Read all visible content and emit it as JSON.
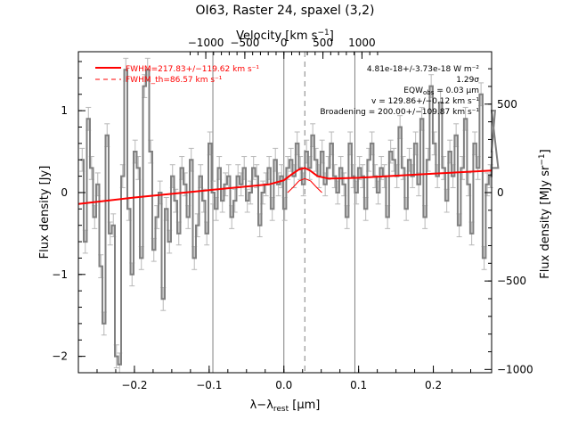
{
  "chart_data": {
    "type": "line",
    "title": "OI63, Raster 24, spaxel (3,2)",
    "xlabel": "λ−λrest [μm]",
    "xlabel_parts": {
      "lambda": "λ−λ",
      "sub": "rest",
      "unit": " [μm]"
    },
    "ylabel_left": "Flux density [Jy]",
    "ylabel_right": "Flux density [MJy sr⁻¹]",
    "ylabel_right_parts": {
      "text": "Flux density [MJy sr",
      "sup": "−1",
      "close": "]"
    },
    "xlabel_top": "Velocity [km s⁻¹]",
    "xlabel_top_parts": {
      "text": "Velocity [km s",
      "sup": "−1",
      "close": "]"
    },
    "xlim": [
      -0.275,
      0.278
    ],
    "ylim": [
      -2.2,
      1.72
    ],
    "xticks": [
      -0.2,
      -0.1,
      0.0,
      0.1,
      0.2
    ],
    "xtick_labels": [
      "−0.2",
      "−0.1",
      "0.0",
      "0.1",
      "0.2"
    ],
    "yticks": [
      -2,
      -1,
      0,
      1
    ],
    "ytick_labels": [
      "−2",
      "−1",
      "0",
      "1"
    ],
    "velocity_ticks": [
      -1000,
      -500,
      0,
      500,
      1000
    ],
    "velocity_tick_labels": [
      "−1000",
      "−500",
      "0",
      "500",
      "1000"
    ],
    "velocity_zero_x": 0.0,
    "microns_per_1000_kms": 0.1045,
    "right_ticks": [
      -1000,
      -500,
      0,
      500
    ],
    "right_tick_labels": [
      "−1000",
      "−500",
      "0",
      "500"
    ],
    "right_zero_y": 0.0,
    "jy_per_500_mjysr": 1.08,
    "vertical_lines": [
      -0.095,
      0.0,
      0.095
    ],
    "dashed_line_x": 0.028,
    "annotations": [
      "4.81e-18+/-3.73e-18 W m⁻²",
      "1.29σ",
      "EQW = 0.03 μm",
      "v = 129.86+/−0.12 km s⁻¹",
      "Broadening = 200.00+/−109.87 km s⁻¹"
    ],
    "eqw_parts": {
      "pre": "EQW",
      "sub": "obs",
      "post": " = 0.03 μm"
    },
    "legend": [
      "FWHM=217.83+/−119.62 km s⁻¹",
      "FWHM_th=86.57 km s⁻¹"
    ],
    "legend_placement": "top-left",
    "colors": {
      "data": "#808080",
      "fit": "#ff0000",
      "axes": "#000000"
    },
    "series": [
      {
        "type": "histogram_with_errorbars",
        "color": "#808080",
        "error_bar": 0.14,
        "x_step": 0.00417,
        "x_start": -0.272,
        "values": [
          0.4,
          -0.6,
          0.9,
          0.3,
          -0.3,
          0.1,
          -0.9,
          -1.6,
          0.7,
          -0.5,
          -0.4,
          -2.0,
          -2.1,
          0.2,
          1.5,
          -0.2,
          -1.0,
          0.5,
          0.3,
          -0.8,
          1.3,
          1.5,
          0.5,
          -0.7,
          -0.3,
          0.0,
          -1.3,
          -0.2,
          -0.6,
          0.2,
          -0.1,
          -0.5,
          0.3,
          0.1,
          -0.3,
          0.4,
          -0.8,
          -0.4,
          0.2,
          -0.1,
          -0.5,
          0.6,
          0.0,
          -0.2,
          0.3,
          -0.1,
          0.1,
          0.2,
          -0.3,
          -0.1,
          0.2,
          0.1,
          0.3,
          -0.1,
          0.0,
          0.3,
          0.2,
          -0.4,
          0.0,
          0.1,
          0.3,
          -0.2,
          0.4,
          0.1,
          0.2,
          -0.2,
          0.3,
          0.4,
          0.2,
          0.6,
          0.3,
          0.1,
          0.5,
          0.3,
          0.7,
          0.4,
          0.2,
          0.5,
          0.1,
          0.3,
          0.6,
          0.2,
          0.0,
          0.3,
          0.1,
          -0.3,
          0.6,
          0.2,
          0.0,
          0.3,
          0.2,
          -0.2,
          0.4,
          0.6,
          0.2,
          0.0,
          0.3,
          0.2,
          -0.3,
          0.5,
          0.4,
          0.2,
          0.8,
          0.3,
          -0.2,
          0.4,
          0.2,
          0.6,
          0.1,
          0.9,
          -0.3,
          0.4,
          1.3,
          0.6,
          0.2,
          1.1,
          0.3,
          -0.1,
          0.5,
          0.2,
          0.7,
          -0.4,
          0.3,
          0.9,
          0.1,
          -0.5,
          0.6,
          0.3,
          1.2,
          -0.8,
          0.1,
          0.2,
          0.5,
          1.0,
          0.3
        ]
      },
      {
        "name": "fit",
        "type": "line",
        "color": "#ff0000",
        "x": [
          -0.275,
          -0.2,
          -0.1,
          -0.02,
          0.0,
          0.01,
          0.02,
          0.028,
          0.035,
          0.045,
          0.06,
          0.1,
          0.2,
          0.278
        ],
        "y": [
          -0.14,
          -0.06,
          0.03,
          0.1,
          0.15,
          0.22,
          0.28,
          0.3,
          0.27,
          0.2,
          0.17,
          0.18,
          0.23,
          0.27
        ]
      },
      {
        "name": "gaussian",
        "type": "line",
        "color": "#ff0000",
        "x": [
          0.005,
          0.012,
          0.02,
          0.028,
          0.036,
          0.044,
          0.051
        ],
        "y": [
          0.0,
          0.06,
          0.14,
          0.17,
          0.14,
          0.06,
          0.0
        ]
      }
    ]
  }
}
